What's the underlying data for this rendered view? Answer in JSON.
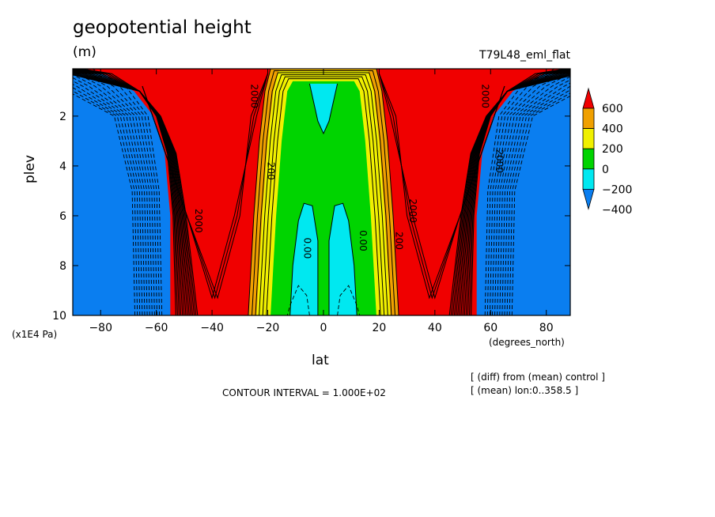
{
  "chart_data": {
    "type": "heatmap",
    "title": "geopotential height",
    "units": "(m)",
    "run_name": "T79L48_eml_flat",
    "xlabel": "lat",
    "xunits": "(degrees_north)",
    "ylabel": "plev",
    "yunits": "(x1E4 Pa)",
    "x_ticks": [
      -80,
      -60,
      -40,
      -20,
      0,
      20,
      40,
      60,
      80
    ],
    "x_tick_labels": [
      "−80",
      "−60",
      "−40",
      "−20",
      "0",
      "20",
      "40",
      "60",
      "80"
    ],
    "y_ticks": [
      2,
      4,
      6,
      8,
      10
    ],
    "y_tick_labels": [
      "2",
      "4",
      "6",
      "8",
      "10"
    ],
    "xlim": [
      -90,
      88.6
    ],
    "ylim": [
      10,
      0.1
    ],
    "y_inverted": true,
    "contour_interval_text": "CONTOUR INTERVAL = 1.000E+02",
    "notes": [
      "[ (diff) from (mean) control ]",
      "[ (mean) lon:0..358.5 ]"
    ],
    "colorbar": {
      "levels": [
        -400,
        -200,
        0,
        200,
        400,
        600
      ],
      "labels": [
        "−400",
        "−200",
        "0",
        "200",
        "400",
        "600"
      ],
      "colors": [
        "#0a7ef0",
        "#00e8f0",
        "#00d400",
        "#f0f000",
        "#f0a000",
        "#f00000"
      ],
      "low_color": "#0a7ef0",
      "high_color": "#f00000"
    },
    "contour_labels": [
      {
        "text": "0.00",
        "lat": -7,
        "plev": 7.3
      },
      {
        "text": "0.00",
        "lat": 13,
        "plev": 7.0
      },
      {
        "text": "200",
        "lat": 26,
        "plev": 7.0
      },
      {
        "text": "2000",
        "lat": -46,
        "plev": 6.2
      },
      {
        "text": "2000",
        "lat": 31,
        "plev": 5.8
      },
      {
        "text": "2000",
        "lat": 62,
        "plev": 3.8
      },
      {
        "text": "2000",
        "lat": 57,
        "plev": 1.2
      },
      {
        "text": "2000",
        "lat": -26,
        "plev": 1.2
      },
      {
        "text": "200",
        "lat": -20,
        "plev": 4.2
      }
    ],
    "regions": {
      "blue_edge_lat": 55,
      "red_inner_lat": 40,
      "green_half_width": 16,
      "cyan_half_width": 9,
      "center_gap": 2
    }
  }
}
